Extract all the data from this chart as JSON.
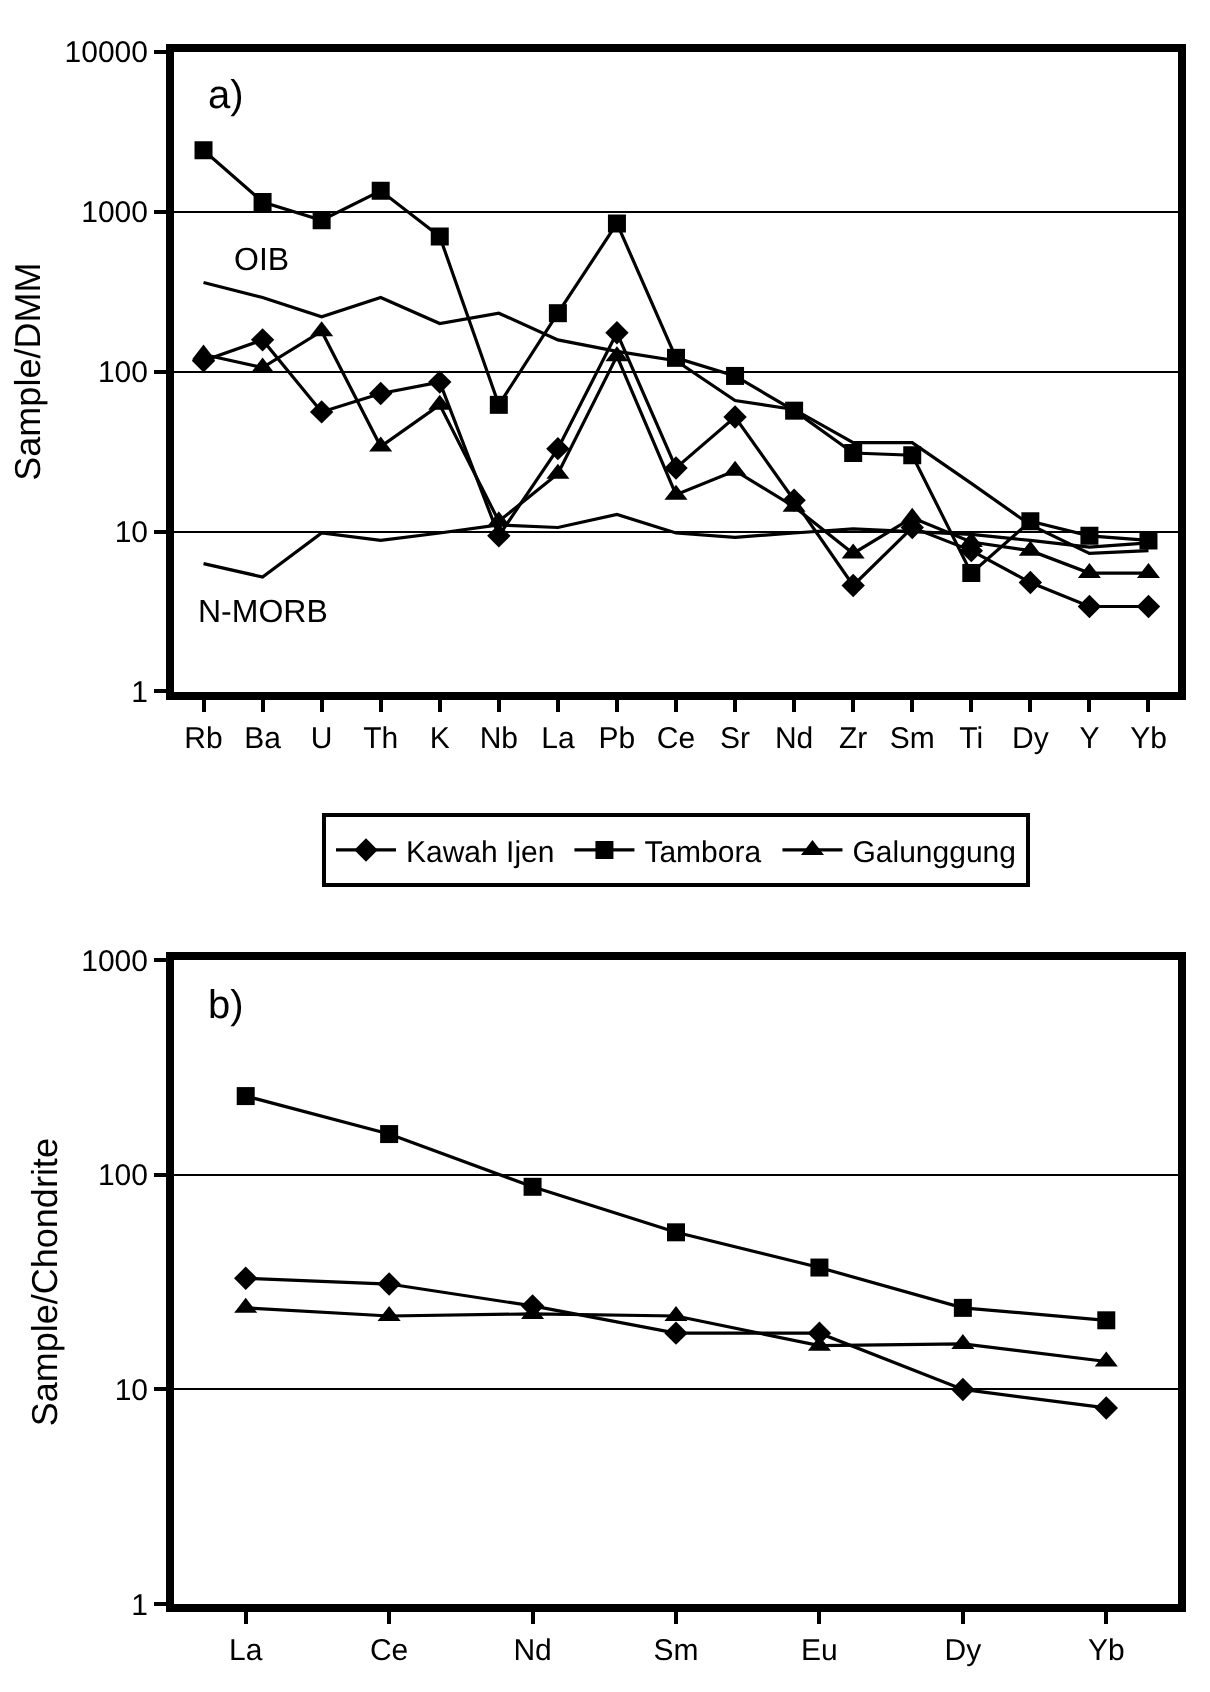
{
  "chart_data": [
    {
      "type": "line",
      "title": "a)",
      "ylabel": "Sample/DMM",
      "categories": [
        "Rb",
        "Ba",
        "U",
        "Th",
        "K",
        "Nb",
        "La",
        "Pb",
        "Ce",
        "Sr",
        "Nd",
        "Zr",
        "Sm",
        "Ti",
        "Dy",
        "Y",
        "Yb"
      ],
      "log": true,
      "ylim": [
        1,
        10000
      ],
      "yticks": [
        1,
        10,
        100,
        1000,
        10000
      ],
      "grid": "y",
      "legend": "bottom",
      "line_style": "solid",
      "series": [
        {
          "name": "Kawah Ijen",
          "color": "#000000",
          "marker": "diamond",
          "values": [
            117,
            158,
            56,
            73,
            86,
            9.4,
            33,
            175,
            25,
            52,
            15.7,
            4.6,
            10.6,
            7.6,
            4.8,
            3.4,
            3.4
          ]
        },
        {
          "name": "Tambora",
          "color": "#000000",
          "marker": "square",
          "values": [
            2420,
            1150,
            885,
            1350,
            700,
            62,
            232,
            845,
            122,
            94,
            57,
            31,
            30,
            5.5,
            11.6,
            9.4,
            8.8
          ]
        },
        {
          "name": "Galunggung",
          "color": "#000000",
          "marker": "triangle",
          "values": [
            128,
            106,
            179,
            34,
            62,
            11.6,
            23,
            125,
            17,
            24,
            14.3,
            7.3,
            12.2,
            8.6,
            7.6,
            5.5,
            5.5
          ]
        },
        {
          "name": "OIB",
          "color": "#000000",
          "marker": "none",
          "values": [
            361,
            291,
            220,
            291,
            200,
            232,
            158,
            134,
            117,
            66,
            58,
            36,
            36,
            20,
            11,
            7.3,
            7.6
          ]
        },
        {
          "name": "N-MORB",
          "color": "#000000",
          "marker": "none",
          "values": [
            6.3,
            5.2,
            9.8,
            8.8,
            9.8,
            11,
            10.6,
            12.8,
            9.8,
            9.2,
            9.8,
            10.4,
            10,
            9.6,
            8.8,
            8,
            8.5
          ]
        }
      ]
    },
    {
      "type": "line",
      "title": "b)",
      "ylabel": "Sample/Chondrite",
      "categories": [
        "La",
        "Ce",
        "Nd",
        "Sm",
        "Eu",
        "Dy",
        "Yb"
      ],
      "log": true,
      "ylim": [
        1,
        1000
      ],
      "yticks": [
        1,
        10,
        100,
        1000
      ],
      "grid": "y",
      "line_style": "solid",
      "series": [
        {
          "name": "Kawah Ijen",
          "color": "#000000",
          "marker": "diamond",
          "values": [
            33,
            31,
            24.5,
            18.3,
            18.3,
            10,
            8.2
          ]
        },
        {
          "name": "Tambora",
          "color": "#000000",
          "marker": "square",
          "values": [
            233,
            155,
            88,
            54,
            37,
            24,
            21
          ]
        },
        {
          "name": "Galunggung",
          "color": "#000000",
          "marker": "triangle",
          "values": [
            24,
            22,
            22.5,
            22,
            16,
            16.3,
            13.5
          ]
        }
      ]
    }
  ]
}
